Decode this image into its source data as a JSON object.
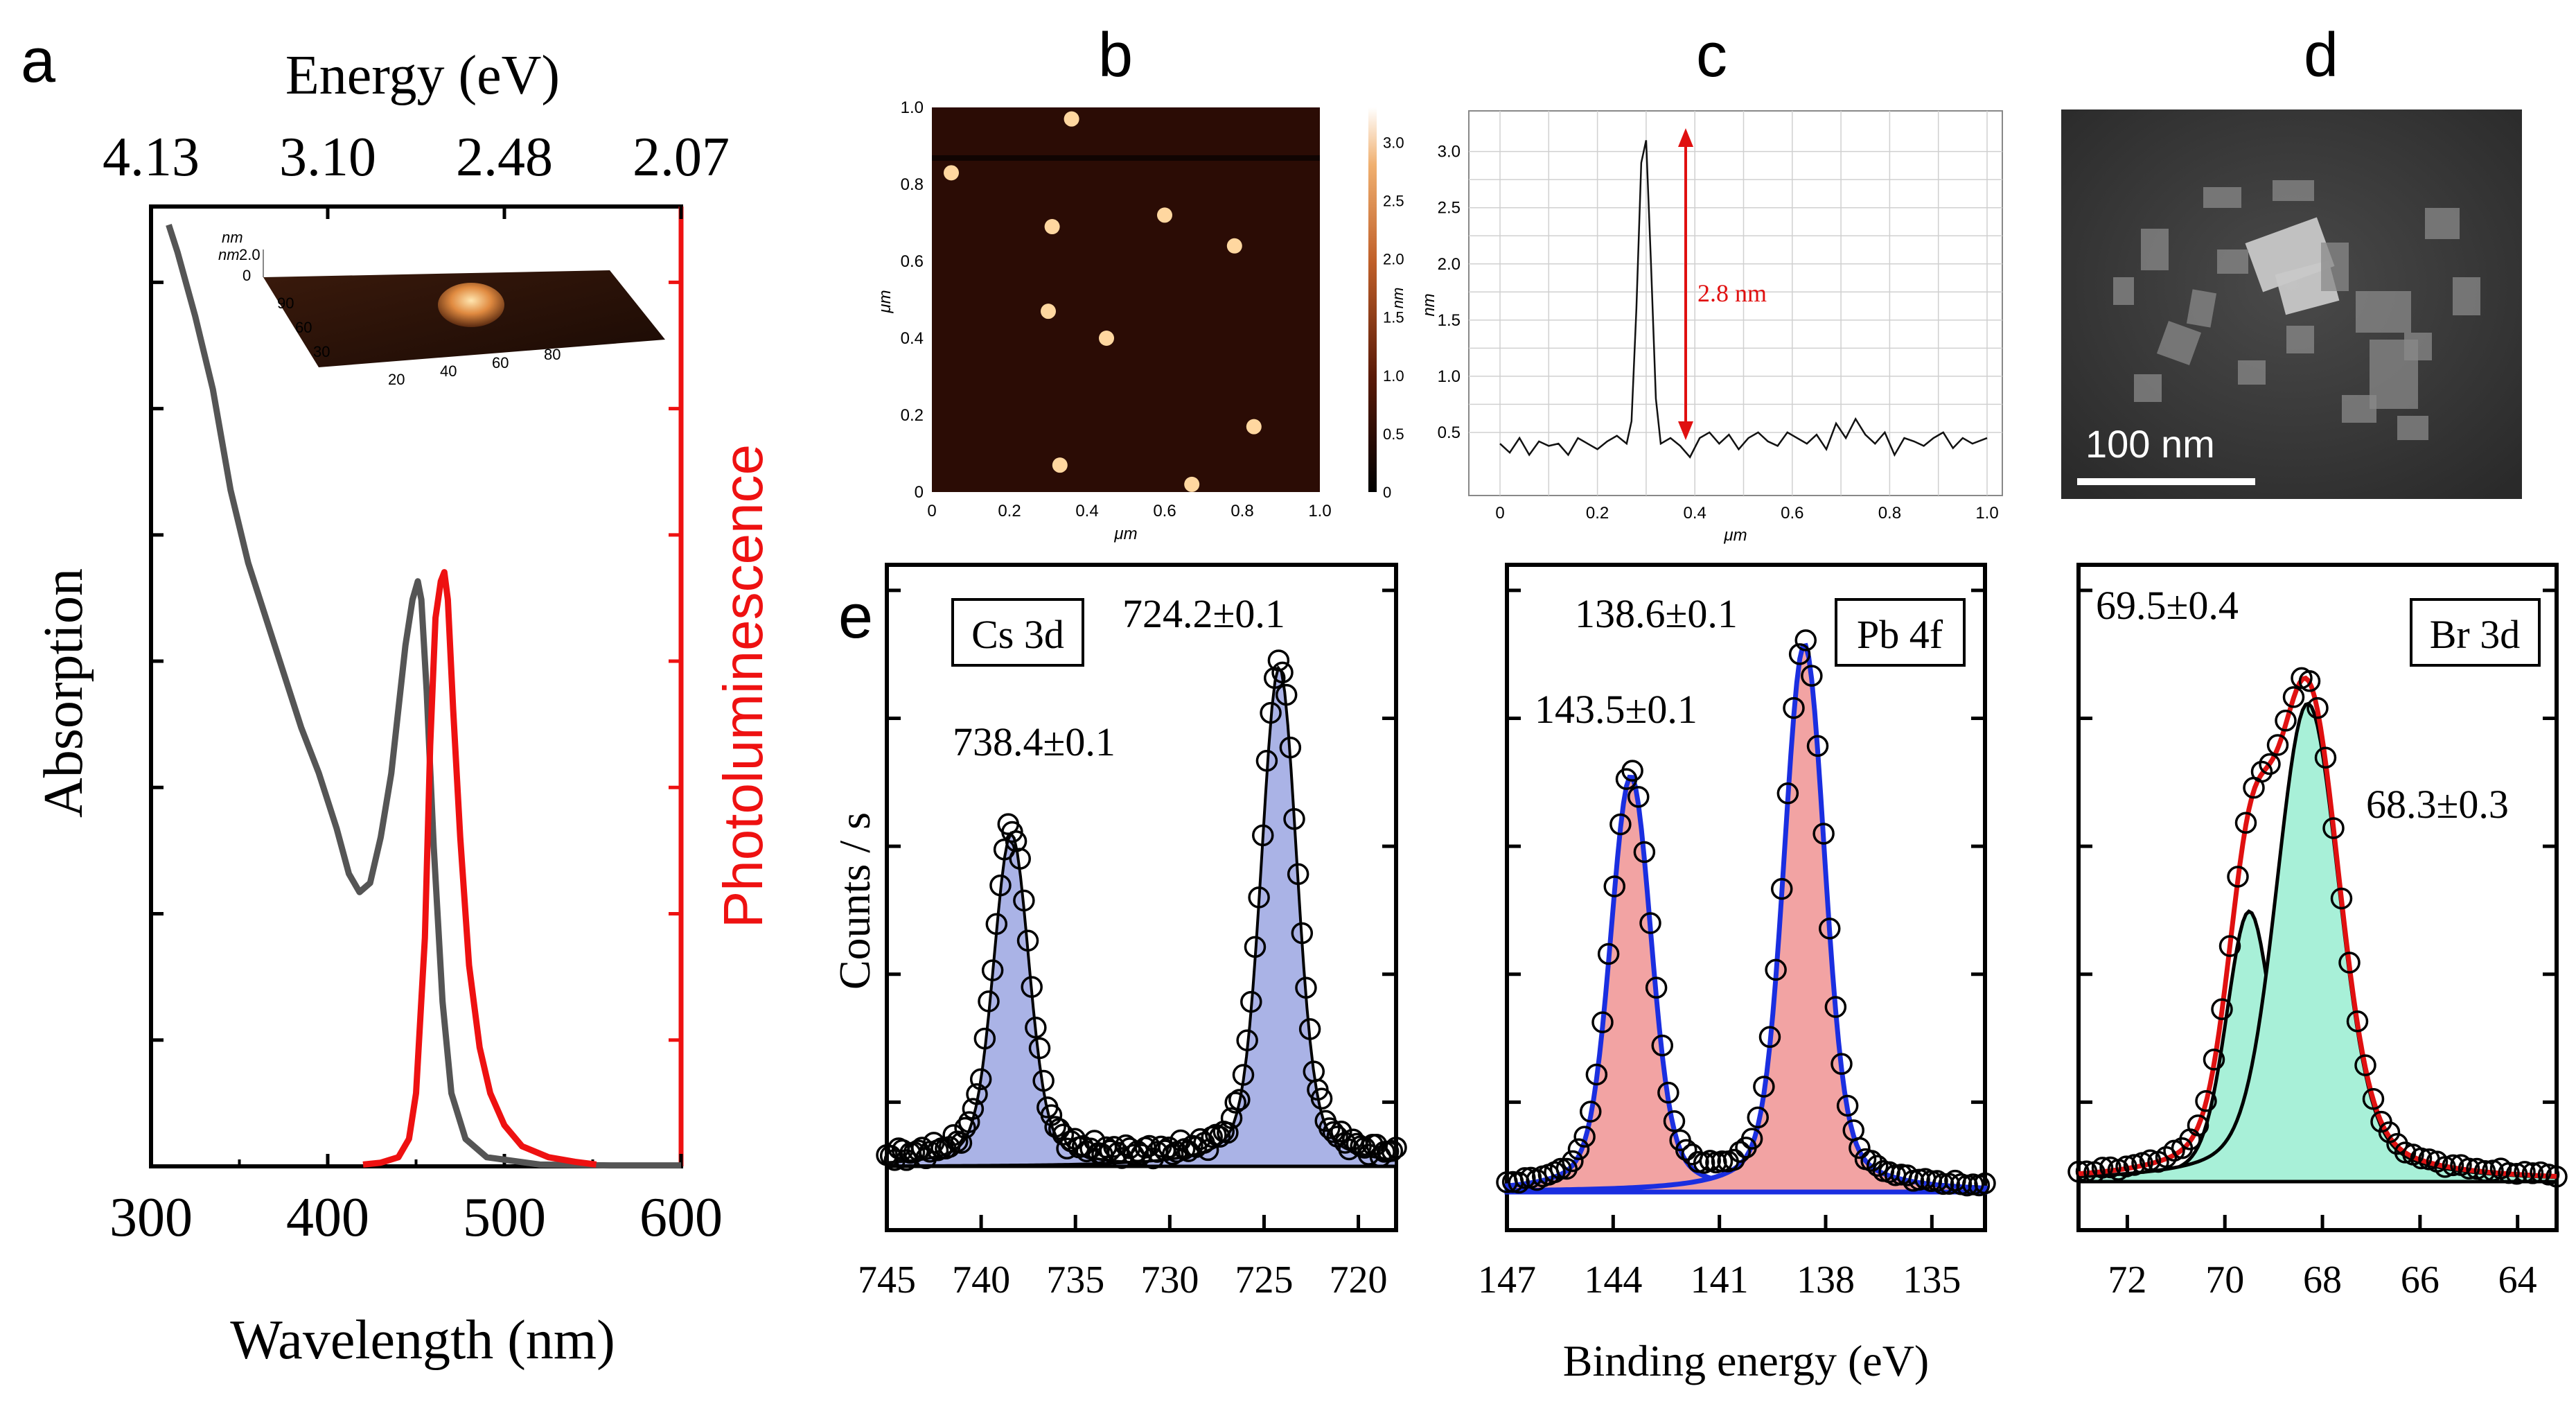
{
  "panels": {
    "a": "a",
    "b": "b",
    "c": "c",
    "d": "d",
    "e": "e"
  },
  "colors": {
    "abs": "#555555",
    "pl": "#ee1111",
    "axis": "#000000",
    "cs_fill": "#aab3e6",
    "pb_fill": "#f2a3a3",
    "pb_line": "#1a2ee0",
    "br_fill": "#a8f0d8",
    "br_env": "#e01010"
  },
  "chart_data": [
    {
      "id": "a",
      "type": "line",
      "xlabel": "Wavelength (nm)",
      "x2label": "Energy (eV)",
      "ylabel": "Absorption",
      "y2label": "Photoluminescence",
      "xlim": [
        300,
        600
      ],
      "xticks": [
        "300",
        "400",
        "500",
        "600"
      ],
      "x2ticks": [
        {
          "pos": 300,
          "label": "4.13"
        },
        {
          "pos": 400,
          "label": "3.10"
        },
        {
          "pos": 500,
          "label": "2.48"
        },
        {
          "pos": 600,
          "label": "2.07"
        }
      ],
      "ylim": [
        0,
        1.05
      ],
      "series": [
        {
          "name": "Absorption",
          "x": [
            310,
            315,
            325,
            335,
            345,
            355,
            365,
            375,
            385,
            395,
            405,
            412,
            418,
            424,
            430,
            436,
            440,
            444,
            448,
            451,
            453,
            456,
            460,
            465,
            470,
            478,
            490,
            520,
            560,
            600
          ],
          "y": [
            1.03,
            1.0,
            0.93,
            0.85,
            0.74,
            0.66,
            0.6,
            0.54,
            0.48,
            0.43,
            0.37,
            0.32,
            0.3,
            0.31,
            0.36,
            0.43,
            0.5,
            0.57,
            0.62,
            0.64,
            0.62,
            0.52,
            0.35,
            0.18,
            0.08,
            0.03,
            0.01,
            0.002,
            0.001,
            0.001
          ]
        },
        {
          "name": "Photoluminescence",
          "x": [
            420,
            430,
            440,
            446,
            450,
            455,
            458,
            461,
            464,
            466,
            468,
            471,
            475,
            480,
            486,
            492,
            500,
            510,
            525,
            540,
            552
          ],
          "y": [
            0.002,
            0.004,
            0.01,
            0.03,
            0.08,
            0.25,
            0.46,
            0.6,
            0.64,
            0.65,
            0.62,
            0.5,
            0.36,
            0.22,
            0.13,
            0.08,
            0.045,
            0.022,
            0.01,
            0.005,
            0.002
          ]
        }
      ],
      "inset": {
        "z_unit": "nm",
        "z_tick": "2.0",
        "z_zero": "0",
        "y_unit": "nm",
        "y_ticks": [
          "90",
          "60",
          "30"
        ],
        "x_ticks": [
          "20",
          "40",
          "60",
          "80"
        ]
      }
    },
    {
      "id": "b",
      "type": "heatmap",
      "xlabel": "μm",
      "ylabel": "μm",
      "xticks": [
        "0",
        "0.2",
        "0.4",
        "0.6",
        "0.8",
        "1.0"
      ],
      "yticks": [
        "0",
        "0.2",
        "0.4",
        "0.6",
        "0.8",
        "1.0"
      ],
      "colorbar": {
        "label": "nm",
        "ticks": [
          "0",
          "0.5",
          "1.0",
          "1.5",
          "2.0",
          "2.5",
          "3.0"
        ]
      },
      "dots": [
        {
          "x": 0.36,
          "y": 0.97
        },
        {
          "x": 0.05,
          "y": 0.83
        },
        {
          "x": 0.6,
          "y": 0.72
        },
        {
          "x": 0.31,
          "y": 0.69
        },
        {
          "x": 0.78,
          "y": 0.64
        },
        {
          "x": 0.3,
          "y": 0.47
        },
        {
          "x": 0.45,
          "y": 0.4
        },
        {
          "x": 0.83,
          "y": 0.17
        },
        {
          "x": 0.33,
          "y": 0.07
        },
        {
          "x": 0.67,
          "y": 0.02
        }
      ]
    },
    {
      "id": "c",
      "type": "line",
      "xlabel": "μm",
      "ylabel": "nm",
      "xlim": [
        0,
        1
      ],
      "ylim": [
        0,
        3.3
      ],
      "xticks": [
        "0",
        "0.2",
        "0.4",
        "0.6",
        "0.8",
        "1.0"
      ],
      "yticks": [
        "0.5",
        "1.0",
        "1.5",
        "2.0",
        "2.5",
        "3.0"
      ],
      "annotation": "2.8 nm",
      "profile": {
        "x": [
          0,
          0.02,
          0.04,
          0.06,
          0.08,
          0.1,
          0.12,
          0.14,
          0.16,
          0.18,
          0.2,
          0.22,
          0.24,
          0.26,
          0.27,
          0.28,
          0.29,
          0.3,
          0.31,
          0.32,
          0.33,
          0.35,
          0.37,
          0.39,
          0.41,
          0.43,
          0.45,
          0.47,
          0.49,
          0.51,
          0.53,
          0.55,
          0.57,
          0.59,
          0.61,
          0.63,
          0.65,
          0.67,
          0.69,
          0.71,
          0.73,
          0.75,
          0.77,
          0.79,
          0.81,
          0.83,
          0.85,
          0.87,
          0.89,
          0.91,
          0.93,
          0.95,
          0.97,
          1.0
        ],
        "y": [
          0.4,
          0.32,
          0.45,
          0.3,
          0.42,
          0.38,
          0.4,
          0.3,
          0.45,
          0.4,
          0.35,
          0.42,
          0.47,
          0.4,
          0.6,
          1.6,
          2.9,
          3.1,
          2.0,
          0.8,
          0.4,
          0.45,
          0.38,
          0.28,
          0.45,
          0.5,
          0.4,
          0.48,
          0.35,
          0.45,
          0.5,
          0.42,
          0.38,
          0.5,
          0.45,
          0.4,
          0.48,
          0.35,
          0.58,
          0.45,
          0.62,
          0.48,
          0.4,
          0.5,
          0.3,
          0.45,
          0.42,
          0.38,
          0.45,
          0.5,
          0.36,
          0.45,
          0.4,
          0.45
        ]
      }
    },
    {
      "id": "d",
      "type": "image",
      "scale_label": "100 nm"
    },
    {
      "id": "e_cs",
      "type": "scatter+fit",
      "title": "Cs 3d",
      "ylabel": "Counts / s",
      "xlim": [
        745,
        718
      ],
      "xticks": [
        "745",
        "740",
        "735",
        "730",
        "725",
        "720"
      ],
      "peaks": [
        {
          "center": 738.4,
          "label": "738.4±0.1"
        },
        {
          "center": 724.2,
          "label": "724.2±0.1"
        }
      ]
    },
    {
      "id": "e_pb",
      "type": "scatter+fit",
      "title": "Pb 4f",
      "xlabel": "Binding energy (eV)",
      "xlim": [
        147,
        133.5
      ],
      "xticks": [
        "147",
        "144",
        "141",
        "138",
        "135"
      ],
      "peaks": [
        {
          "center": 143.5,
          "label": "143.5±0.1"
        },
        {
          "center": 138.6,
          "label": "138.6±0.1"
        }
      ]
    },
    {
      "id": "e_br",
      "type": "scatter+fit",
      "title": "Br 3d",
      "xlim": [
        73,
        63.2
      ],
      "xticks": [
        "72",
        "70",
        "68",
        "66",
        "64"
      ],
      "peaks": [
        {
          "center": 69.5,
          "label": "69.5±0.4"
        },
        {
          "center": 68.3,
          "label": "68.3±0.3"
        }
      ]
    }
  ]
}
